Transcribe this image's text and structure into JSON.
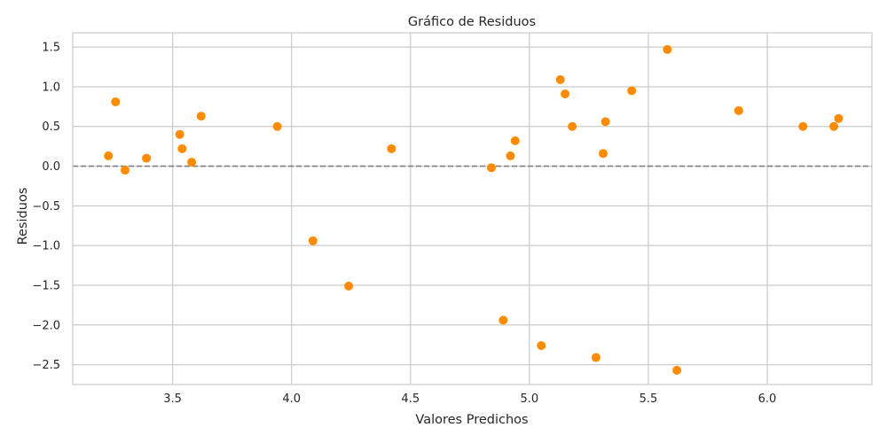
{
  "chart_data": {
    "type": "scatter",
    "title": "Gráfico de Residuos",
    "xlabel": "Valores Predichos",
    "ylabel": "Residuos",
    "xlim": [
      3.08,
      6.44
    ],
    "ylim": [
      -2.75,
      1.68
    ],
    "xticks": [
      3.5,
      4.0,
      4.5,
      5.0,
      5.5,
      6.0
    ],
    "xtick_labels": [
      "3.5",
      "4.0",
      "4.5",
      "5.0",
      "5.5",
      "6.0"
    ],
    "yticks": [
      1.5,
      1.0,
      0.5,
      0.0,
      -0.5,
      -1.0,
      -1.5,
      -2.0,
      -2.5
    ],
    "ytick_labels": [
      "1.5",
      "1.0",
      "0.5",
      "0.0",
      "−0.5",
      "−1.0",
      "−1.5",
      "−2.0",
      "−2.5"
    ],
    "grid": true,
    "reference_line": {
      "y": 0,
      "style": "dashed",
      "color": "#808080"
    },
    "point_color": "#ff8c00",
    "points": [
      {
        "x": 3.23,
        "y": 0.13
      },
      {
        "x": 3.26,
        "y": 0.81
      },
      {
        "x": 3.3,
        "y": -0.05
      },
      {
        "x": 3.39,
        "y": 0.1
      },
      {
        "x": 3.53,
        "y": 0.4
      },
      {
        "x": 3.54,
        "y": 0.22
      },
      {
        "x": 3.58,
        "y": 0.05
      },
      {
        "x": 3.62,
        "y": 0.63
      },
      {
        "x": 3.94,
        "y": 0.5
      },
      {
        "x": 4.09,
        "y": -0.94
      },
      {
        "x": 4.24,
        "y": -1.51
      },
      {
        "x": 4.42,
        "y": 0.22
      },
      {
        "x": 4.84,
        "y": -0.02
      },
      {
        "x": 4.89,
        "y": -1.94
      },
      {
        "x": 4.92,
        "y": 0.13
      },
      {
        "x": 4.94,
        "y": 0.32
      },
      {
        "x": 5.05,
        "y": -2.26
      },
      {
        "x": 5.13,
        "y": 1.09
      },
      {
        "x": 5.15,
        "y": 0.91
      },
      {
        "x": 5.18,
        "y": 0.5
      },
      {
        "x": 5.28,
        "y": -2.41
      },
      {
        "x": 5.31,
        "y": 0.16
      },
      {
        "x": 5.32,
        "y": 0.56
      },
      {
        "x": 5.43,
        "y": 0.95
      },
      {
        "x": 5.58,
        "y": 1.47
      },
      {
        "x": 5.62,
        "y": -2.57
      },
      {
        "x": 5.88,
        "y": 0.7
      },
      {
        "x": 6.15,
        "y": 0.5
      },
      {
        "x": 6.28,
        "y": 0.5
      },
      {
        "x": 6.3,
        "y": 0.6
      }
    ]
  }
}
